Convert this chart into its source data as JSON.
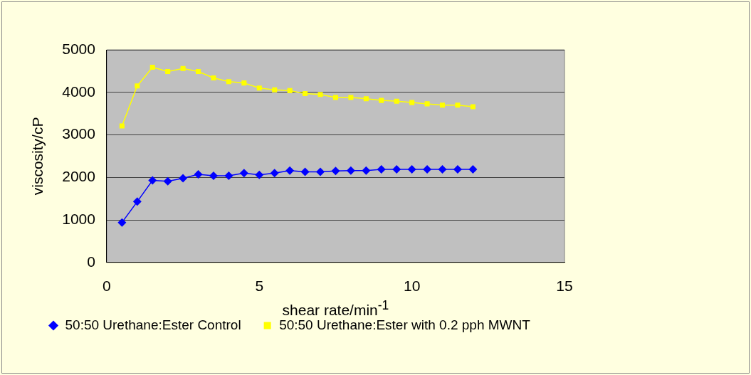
{
  "chart_data": {
    "type": "line",
    "xlabel": "shear rate/min$^{-1}$",
    "ylabel": "viscosity/cP",
    "x": [
      0.5,
      1,
      1.5,
      2,
      2.5,
      3,
      3.5,
      4,
      4.5,
      5,
      5.5,
      6,
      6.5,
      7,
      7.5,
      8,
      8.5,
      9,
      9.5,
      10,
      10.5,
      11,
      11.5,
      12
    ],
    "series": [
      {
        "name": "50:50 Urethane:Ester Control",
        "color": "#0000ff",
        "marker": "diamond",
        "values": [
          940,
          1430,
          1930,
          1910,
          1980,
          2070,
          2040,
          2040,
          2100,
          2060,
          2100,
          2160,
          2130,
          2130,
          2150,
          2160,
          2160,
          2190,
          2190,
          2190,
          2190,
          2190,
          2190,
          2190
        ]
      },
      {
        "name": "50:50 Urethane:Ester with 0.2 pph MWNT",
        "color": "#ffff00",
        "marker": "square",
        "values": [
          3210,
          4150,
          4590,
          4490,
          4560,
          4490,
          4340,
          4250,
          4220,
          4100,
          4060,
          4040,
          3970,
          3950,
          3880,
          3880,
          3850,
          3810,
          3790,
          3760,
          3730,
          3700,
          3700,
          3660
        ]
      }
    ],
    "xlim": [
      0,
      15
    ],
    "xticks": [
      0,
      5,
      10,
      15
    ],
    "ylim": [
      0,
      5000
    ],
    "yticks": [
      0,
      1000,
      2000,
      3000,
      4000,
      5000
    ],
    "grid": "y",
    "legend": "bottom"
  }
}
